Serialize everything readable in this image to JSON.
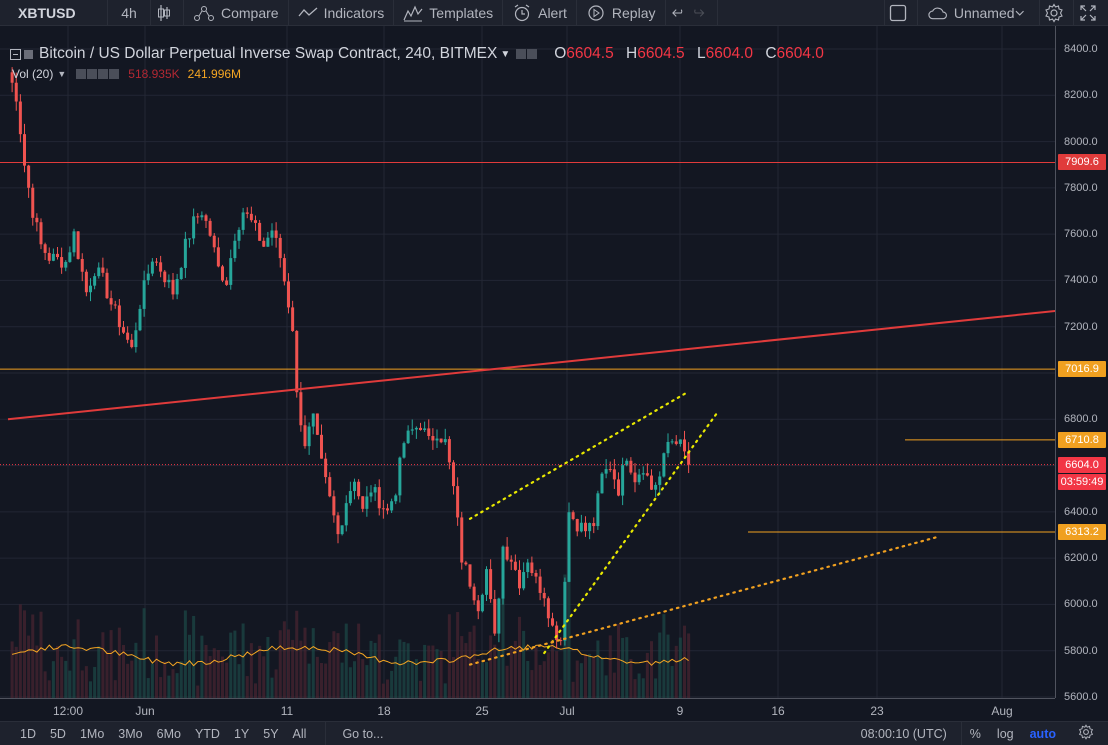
{
  "toolbar": {
    "symbol": "XBTUSD",
    "interval": "4h",
    "compare": "Compare",
    "indicators": "Indicators",
    "templates": "Templates",
    "alert": "Alert",
    "replay": "Replay",
    "layout_name": "Unnamed"
  },
  "legend": {
    "title": "Bitcoin / US Dollar Perpetual Inverse Swap Contract, 240, BITMEX",
    "o_label": "O",
    "o_value": "6604.5",
    "h_label": "H",
    "h_value": "6604.5",
    "l_label": "L",
    "l_value": "6604.0",
    "c_label": "C",
    "c_value": "6604.0"
  },
  "volume": {
    "name": "Vol (20)",
    "value": "518.935K",
    "ma_value": "241.996M"
  },
  "price_axis": {
    "ticks": [
      "8400.0",
      "8200.0",
      "8000.0",
      "7800.0",
      "7600.0",
      "7400.0",
      "7200.0",
      "7000.0",
      "6800.0",
      "6600.0",
      "6400.0",
      "6200.0",
      "6000.0",
      "5800.0",
      "5600.0"
    ],
    "badges": [
      {
        "text": "7909.6",
        "color": "#e03b3b"
      },
      {
        "text": "7016.9",
        "color": "#f0a020"
      },
      {
        "text": "6710.8",
        "color": "#f0a020"
      },
      {
        "text": "6604.0",
        "color": "#f23645"
      },
      {
        "text": "03:59:49",
        "color": "#f23645"
      },
      {
        "text": "6313.2",
        "color": "#f0a020"
      }
    ]
  },
  "time_axis": {
    "ticks": [
      "12:00",
      "Jun",
      "11",
      "18",
      "25",
      "Jul",
      "9",
      "16",
      "23",
      "Aug"
    ]
  },
  "bottombar": {
    "ranges": [
      "1D",
      "5D",
      "1Mo",
      "3Mo",
      "6Mo",
      "YTD",
      "1Y",
      "5Y",
      "All"
    ],
    "goto": "Go to...",
    "clock": "08:00:10 (UTC)",
    "percent": "%",
    "log": "log",
    "auto": "auto"
  },
  "colors": {
    "background": "#131722",
    "up": "#26a69a",
    "down": "#ef5350",
    "resistance": "#e03b3b",
    "support": "#f0a020",
    "channel": "#e8e800"
  },
  "chart_data": {
    "type": "candlestick",
    "symbol": "XBTUSD",
    "timeframe": "240",
    "exchange": "BITMEX",
    "y_range": [
      5600,
      8400
    ],
    "x_ticks": [
      "12:00",
      "Jun",
      "11",
      "18",
      "25",
      "Jul",
      "9",
      "16",
      "23",
      "Aug"
    ],
    "last_price": 6604.0,
    "close_path": [
      [
        0,
        8300
      ],
      [
        2,
        8200
      ],
      [
        4,
        7900
      ],
      [
        6,
        7700
      ],
      [
        8,
        7550
      ],
      [
        10,
        7500
      ],
      [
        14,
        7480
      ],
      [
        16,
        7600
      ],
      [
        19,
        7350
      ],
      [
        21,
        7450
      ],
      [
        23,
        7400
      ],
      [
        25,
        7300
      ],
      [
        28,
        7180
      ],
      [
        30,
        7100
      ],
      [
        32,
        7300
      ],
      [
        35,
        7500
      ],
      [
        37,
        7450
      ],
      [
        40,
        7350
      ],
      [
        43,
        7550
      ],
      [
        45,
        7650
      ],
      [
        47,
        7700
      ],
      [
        49,
        7600
      ],
      [
        51,
        7450
      ],
      [
        53,
        7400
      ],
      [
        55,
        7600
      ],
      [
        57,
        7700
      ],
      [
        59,
        7650
      ],
      [
        62,
        7550
      ],
      [
        64,
        7620
      ],
      [
        66,
        7500
      ],
      [
        69,
        7200
      ],
      [
        70,
        6900
      ],
      [
        72,
        6700
      ],
      [
        74,
        6800
      ],
      [
        76,
        6600
      ],
      [
        78,
        6450
      ],
      [
        80,
        6300
      ],
      [
        82,
        6450
      ],
      [
        84,
        6550
      ],
      [
        86,
        6400
      ],
      [
        88,
        6500
      ],
      [
        90,
        6450
      ],
      [
        92,
        6400
      ],
      [
        94,
        6500
      ],
      [
        96,
        6700
      ],
      [
        98,
        6750
      ],
      [
        100,
        6780
      ],
      [
        102,
        6700
      ],
      [
        104,
        6750
      ],
      [
        106,
        6700
      ],
      [
        108,
        6500
      ],
      [
        110,
        6200
      ],
      [
        112,
        6100
      ],
      [
        114,
        6000
      ],
      [
        116,
        6150
      ],
      [
        118,
        5850
      ],
      [
        120,
        6250
      ],
      [
        122,
        6200
      ],
      [
        124,
        6100
      ],
      [
        126,
        6200
      ],
      [
        128,
        6100
      ],
      [
        130,
        6050
      ],
      [
        132,
        5900
      ],
      [
        134,
        5850
      ],
      [
        136,
        6400
      ],
      [
        138,
        6350
      ],
      [
        140,
        6320
      ],
      [
        142,
        6350
      ],
      [
        144,
        6550
      ],
      [
        146,
        6600
      ],
      [
        148,
        6500
      ],
      [
        150,
        6650
      ],
      [
        152,
        6550
      ],
      [
        154,
        6600
      ],
      [
        156,
        6500
      ],
      [
        158,
        6550
      ],
      [
        160,
        6700
      ],
      [
        162,
        6720
      ],
      [
        164,
        6650
      ],
      [
        165,
        6604
      ]
    ],
    "horizontal_levels": [
      {
        "price": 7909.6,
        "color": "#e03b3b"
      },
      {
        "price": 7016.9,
        "color": "#f0a020"
      },
      {
        "price": 6710.8,
        "color": "#f0a020"
      },
      {
        "price": 6313.2,
        "color": "#f0a020"
      }
    ],
    "trendlines": [
      {
        "from": [
          0,
          6800
        ],
        "to": [
          255,
          7270
        ],
        "color": "#e03b3b",
        "style": "solid"
      },
      {
        "from": [
          112,
          6370
        ],
        "to": [
          165,
          6920
        ],
        "color": "#e8e800",
        "style": "dotted"
      },
      {
        "from": [
          130,
          5790
        ],
        "to": [
          172,
          6830
        ],
        "color": "#e8e800",
        "style": "dotted"
      },
      {
        "from": [
          112,
          5740
        ],
        "to": [
          225,
          6290
        ],
        "color": "#f0a020",
        "style": "dotted"
      }
    ]
  }
}
